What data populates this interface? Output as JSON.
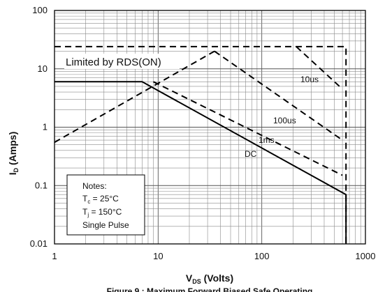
{
  "chart_data": {
    "type": "line",
    "x_scale": "log",
    "y_scale": "log",
    "xlim": [
      1,
      1000
    ],
    "ylim": [
      0.01,
      100
    ],
    "grid": true,
    "x_ticks": [
      "1",
      "10",
      "100",
      "1000"
    ],
    "y_ticks": [
      "0.01",
      "0.1",
      "1",
      "10",
      "100"
    ],
    "xlabel": {
      "main": "V",
      "sub": "DS",
      "rest": " (Volts)"
    },
    "ylabel": {
      "main": "I",
      "sub": "D",
      "rest": " (Amps)"
    },
    "caption": "Figure 9 : Maximum Forward Biased Safe Operating",
    "annotations": {
      "limit": "Limited by RDS(ON)",
      "t10us": "10us",
      "t100us": "100us",
      "t1ms": "1ms",
      "dc": "DC"
    },
    "notes": {
      "title": "Notes:",
      "tc_main": "T",
      "tc_sub": "c",
      "tc_rest": " = 25°C",
      "tj_main": "T",
      "tj_sub": "j",
      "tj_rest": " = 150°C",
      "pulse": "Single Pulse"
    },
    "series": [
      {
        "name": "DC",
        "style": "solid",
        "points": [
          [
            1,
            6
          ],
          [
            7,
            6
          ],
          [
            650,
            0.07
          ],
          [
            650,
            0.01
          ]
        ]
      },
      {
        "name": "RDS(ON) limit",
        "style": "dashed",
        "points": [
          [
            1,
            0.55
          ],
          [
            35,
            20
          ]
        ]
      },
      {
        "name": "1ms",
        "style": "dashed",
        "points": [
          [
            9,
            6
          ],
          [
            600,
            0.15
          ]
        ]
      },
      {
        "name": "100us",
        "style": "dashed",
        "points": [
          [
            35,
            20
          ],
          [
            600,
            0.6
          ]
        ]
      },
      {
        "name": "10us",
        "style": "dashed",
        "points": [
          [
            1,
            24
          ],
          [
            650,
            24
          ],
          [
            650,
            0.01
          ]
        ]
      },
      {
        "name": "10us-diag",
        "style": "dashed",
        "points": [
          [
            215,
            24
          ],
          [
            600,
            4.5
          ]
        ]
      }
    ]
  }
}
